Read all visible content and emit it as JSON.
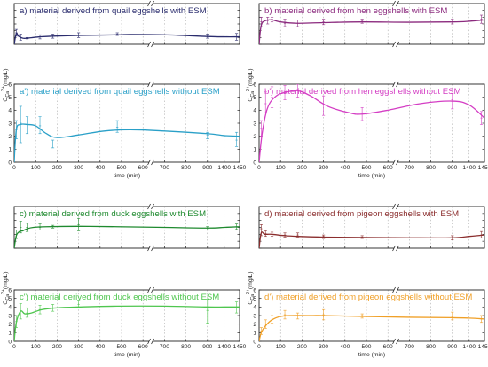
{
  "figure": {
    "x_ticks": [
      0,
      100,
      200,
      300,
      400,
      500,
      600,
      700,
      800,
      900,
      1400,
      1450
    ],
    "y_ticks": [
      0,
      1,
      2,
      3,
      4,
      5,
      6
    ],
    "x_axis_label": "time (min)",
    "y_axis_label": {
      "c": "C",
      "sub": "Ca",
      "sup": "2+",
      "unit": "(mg/L)"
    }
  },
  "chart_data": [
    {
      "type": "line",
      "panel": "a",
      "title": "a) material derived from quail eggshells with ESM",
      "color": "#2b2d6e",
      "xlim": [
        0,
        1450
      ],
      "ylim": [
        0,
        6
      ],
      "points": [
        {
          "x": 0,
          "y": 0
        },
        {
          "x": 10,
          "y": 1.6
        },
        {
          "x": 20,
          "y": 1.2
        },
        {
          "x": 40,
          "y": 0.9
        },
        {
          "x": 60,
          "y": 0.9
        },
        {
          "x": 90,
          "y": 1.0
        },
        {
          "x": 120,
          "y": 1.1
        },
        {
          "x": 180,
          "y": 1.2
        },
        {
          "x": 300,
          "y": 1.3
        },
        {
          "x": 480,
          "y": 1.4
        },
        {
          "x": 540,
          "y": 1.45
        },
        {
          "x": 700,
          "y": 1.4
        },
        {
          "x": 900,
          "y": 1.15
        },
        {
          "x": 1400,
          "y": 1.1
        },
        {
          "x": 1450,
          "y": 1.1
        }
      ],
      "error_bars": [
        {
          "x": 10,
          "y": 1.7,
          "lo": 1.2,
          "hi": 2.2
        },
        {
          "x": 30,
          "y": 1.0,
          "lo": 0.6,
          "hi": 1.5
        },
        {
          "x": 60,
          "y": 0.9,
          "lo": 0.8,
          "hi": 1.0
        },
        {
          "x": 120,
          "y": 1.1,
          "lo": 0.8,
          "hi": 1.4
        },
        {
          "x": 180,
          "y": 1.2,
          "lo": 0.9,
          "hi": 1.5
        },
        {
          "x": 300,
          "y": 1.35,
          "lo": 1.0,
          "hi": 1.7
        },
        {
          "x": 480,
          "y": 1.5,
          "lo": 1.3,
          "hi": 1.7
        },
        {
          "x": 900,
          "y": 1.2,
          "lo": 0.9,
          "hi": 1.5
        },
        {
          "x": 1440,
          "y": 1.1,
          "lo": 0.6,
          "hi": 1.6
        }
      ]
    },
    {
      "type": "line",
      "panel": "a'",
      "title": "a') material derived from quail eggshells without ESM",
      "color": "#2aa0c8",
      "xlim": [
        0,
        1450
      ],
      "ylim": [
        0,
        6
      ],
      "points": [
        {
          "x": 0,
          "y": 0
        },
        {
          "x": 10,
          "y": 2.5
        },
        {
          "x": 30,
          "y": 2.9
        },
        {
          "x": 60,
          "y": 2.9
        },
        {
          "x": 100,
          "y": 2.8
        },
        {
          "x": 150,
          "y": 2.2
        },
        {
          "x": 200,
          "y": 1.9
        },
        {
          "x": 300,
          "y": 2.1
        },
        {
          "x": 420,
          "y": 2.4
        },
        {
          "x": 540,
          "y": 2.5
        },
        {
          "x": 700,
          "y": 2.4
        },
        {
          "x": 900,
          "y": 2.2
        },
        {
          "x": 1400,
          "y": 2.05
        },
        {
          "x": 1450,
          "y": 2.0
        }
      ],
      "error_bars": [
        {
          "x": 10,
          "y": 2.5,
          "lo": 1.8,
          "hi": 3.2
        },
        {
          "x": 30,
          "y": 3.0,
          "lo": 1.5,
          "hi": 4.3
        },
        {
          "x": 60,
          "y": 2.9,
          "lo": 2.2,
          "hi": 3.5
        },
        {
          "x": 120,
          "y": 2.8,
          "lo": 2.2,
          "hi": 3.5
        },
        {
          "x": 180,
          "y": 1.4,
          "lo": 1.1,
          "hi": 1.7
        },
        {
          "x": 480,
          "y": 2.7,
          "lo": 2.3,
          "hi": 3.2
        },
        {
          "x": 900,
          "y": 2.1,
          "lo": 1.8,
          "hi": 2.3
        },
        {
          "x": 1440,
          "y": 1.7,
          "lo": 1.2,
          "hi": 2.3
        }
      ]
    },
    {
      "type": "line",
      "panel": "b",
      "title": "b) material derived from hen eggshells with ESM",
      "color": "#8b2a7e",
      "xlim": [
        0,
        1450
      ],
      "ylim": [
        0,
        6
      ],
      "points": [
        {
          "x": 0,
          "y": 0
        },
        {
          "x": 10,
          "y": 2.8
        },
        {
          "x": 30,
          "y": 3.5
        },
        {
          "x": 60,
          "y": 3.6
        },
        {
          "x": 100,
          "y": 3.3
        },
        {
          "x": 180,
          "y": 3.1
        },
        {
          "x": 300,
          "y": 3.2
        },
        {
          "x": 480,
          "y": 3.3
        },
        {
          "x": 700,
          "y": 3.25
        },
        {
          "x": 900,
          "y": 3.3
        },
        {
          "x": 1400,
          "y": 3.4
        },
        {
          "x": 1450,
          "y": 3.6
        }
      ],
      "error_bars": [
        {
          "x": 10,
          "y": 3.3,
          "lo": 2.6,
          "hi": 4.0
        },
        {
          "x": 40,
          "y": 3.5,
          "lo": 3.0,
          "hi": 4.0
        },
        {
          "x": 60,
          "y": 3.7,
          "lo": 3.3,
          "hi": 4.0
        },
        {
          "x": 120,
          "y": 3.1,
          "lo": 2.6,
          "hi": 3.7
        },
        {
          "x": 180,
          "y": 3.1,
          "lo": 2.6,
          "hi": 3.6
        },
        {
          "x": 300,
          "y": 3.3,
          "lo": 2.9,
          "hi": 3.7
        },
        {
          "x": 480,
          "y": 3.4,
          "lo": 3.1,
          "hi": 3.7
        },
        {
          "x": 900,
          "y": 3.3,
          "lo": 3.0,
          "hi": 3.7
        },
        {
          "x": 1440,
          "y": 3.7,
          "lo": 3.1,
          "hi": 4.3
        }
      ]
    },
    {
      "type": "line",
      "panel": "b'",
      "title": "b') material derived from hen eggshells without ESM",
      "color": "#d43ec4",
      "xlim": [
        0,
        1450
      ],
      "ylim": [
        0,
        6
      ],
      "points": [
        {
          "x": 0,
          "y": 0
        },
        {
          "x": 15,
          "y": 2.3
        },
        {
          "x": 40,
          "y": 4.2
        },
        {
          "x": 80,
          "y": 5.1
        },
        {
          "x": 130,
          "y": 5.4
        },
        {
          "x": 180,
          "y": 5.5
        },
        {
          "x": 240,
          "y": 5.1
        },
        {
          "x": 320,
          "y": 4.3
        },
        {
          "x": 420,
          "y": 3.8
        },
        {
          "x": 480,
          "y": 3.7
        },
        {
          "x": 600,
          "y": 4.0
        },
        {
          "x": 750,
          "y": 4.5
        },
        {
          "x": 900,
          "y": 4.7
        },
        {
          "x": 1400,
          "y": 4.4
        },
        {
          "x": 1450,
          "y": 3.4
        }
      ],
      "error_bars": [
        {
          "x": 10,
          "y": 2.6,
          "lo": 2.0,
          "hi": 3.2
        },
        {
          "x": 30,
          "y": 4.5,
          "lo": 3.8,
          "hi": 5.4
        },
        {
          "x": 60,
          "y": 5.0,
          "lo": 4.2,
          "hi": 5.8
        },
        {
          "x": 120,
          "y": 5.3,
          "lo": 4.8,
          "hi": 5.9
        },
        {
          "x": 180,
          "y": 5.6,
          "lo": 5.0,
          "hi": 6.0
        },
        {
          "x": 300,
          "y": 4.4,
          "lo": 3.6,
          "hi": 5.1
        },
        {
          "x": 480,
          "y": 3.7,
          "lo": 3.2,
          "hi": 4.2
        },
        {
          "x": 900,
          "y": 4.8,
          "lo": 4.1,
          "hi": 5.3
        },
        {
          "x": 1440,
          "y": 3.4,
          "lo": 2.9,
          "hi": 3.9
        }
      ]
    },
    {
      "type": "line",
      "panel": "c",
      "title": "c) material derived from duck eggshells with ESM",
      "color": "#1f8a2f",
      "xlim": [
        0,
        1450
      ],
      "ylim": [
        0,
        6
      ],
      "points": [
        {
          "x": 0,
          "y": 0
        },
        {
          "x": 10,
          "y": 1.8
        },
        {
          "x": 25,
          "y": 2.4
        },
        {
          "x": 40,
          "y": 2.5
        },
        {
          "x": 60,
          "y": 2.8
        },
        {
          "x": 90,
          "y": 3.0
        },
        {
          "x": 150,
          "y": 3.1
        },
        {
          "x": 300,
          "y": 3.15
        },
        {
          "x": 480,
          "y": 3.1
        },
        {
          "x": 700,
          "y": 3.0
        },
        {
          "x": 900,
          "y": 2.9
        },
        {
          "x": 1400,
          "y": 3.0
        },
        {
          "x": 1450,
          "y": 3.1
        }
      ],
      "error_bars": [
        {
          "x": 10,
          "y": 2.0,
          "lo": 1.4,
          "hi": 2.6
        },
        {
          "x": 30,
          "y": 3.0,
          "lo": 2.2,
          "hi": 3.9
        },
        {
          "x": 60,
          "y": 3.0,
          "lo": 2.4,
          "hi": 3.6
        },
        {
          "x": 120,
          "y": 3.0,
          "lo": 2.6,
          "hi": 3.5
        },
        {
          "x": 180,
          "y": 3.1,
          "lo": 2.9,
          "hi": 3.3
        },
        {
          "x": 300,
          "y": 3.4,
          "lo": 2.5,
          "hi": 4.3
        },
        {
          "x": 900,
          "y": 2.9,
          "lo": 2.6,
          "hi": 3.1
        },
        {
          "x": 1440,
          "y": 3.1,
          "lo": 2.7,
          "hi": 3.5
        }
      ]
    },
    {
      "type": "line",
      "panel": "c'",
      "title": "c') material derived from duck eggshells without ESM",
      "color": "#4fc64f",
      "xlim": [
        0,
        1450
      ],
      "ylim": [
        0,
        6
      ],
      "points": [
        {
          "x": 0,
          "y": 0
        },
        {
          "x": 10,
          "y": 2.2
        },
        {
          "x": 30,
          "y": 3.5
        },
        {
          "x": 50,
          "y": 3.2
        },
        {
          "x": 80,
          "y": 3.3
        },
        {
          "x": 130,
          "y": 3.7
        },
        {
          "x": 200,
          "y": 3.9
        },
        {
          "x": 300,
          "y": 4.0
        },
        {
          "x": 480,
          "y": 4.1
        },
        {
          "x": 700,
          "y": 4.1
        },
        {
          "x": 900,
          "y": 4.0
        },
        {
          "x": 1400,
          "y": 4.0
        },
        {
          "x": 1450,
          "y": 4.0
        }
      ],
      "error_bars": [
        {
          "x": 10,
          "y": 2.3,
          "lo": 1.6,
          "hi": 3.0
        },
        {
          "x": 30,
          "y": 3.5,
          "lo": 2.6,
          "hi": 4.4
        },
        {
          "x": 60,
          "y": 3.3,
          "lo": 2.8,
          "hi": 3.9
        },
        {
          "x": 120,
          "y": 3.7,
          "lo": 3.2,
          "hi": 4.2
        },
        {
          "x": 180,
          "y": 3.9,
          "lo": 3.5,
          "hi": 4.3
        },
        {
          "x": 300,
          "y": 4.3,
          "lo": 3.9,
          "hi": 4.8
        },
        {
          "x": 900,
          "y": 3.6,
          "lo": 2.1,
          "hi": 4.9
        },
        {
          "x": 1440,
          "y": 4.0,
          "lo": 3.3,
          "hi": 4.6
        }
      ]
    },
    {
      "type": "line",
      "panel": "d",
      "title": "d) material derived from pigeon eggshells with ESM",
      "color": "#8b2e2e",
      "xlim": [
        0,
        1450
      ],
      "ylim": [
        0,
        6
      ],
      "points": [
        {
          "x": 0,
          "y": 0
        },
        {
          "x": 10,
          "y": 2.2
        },
        {
          "x": 25,
          "y": 2.0
        },
        {
          "x": 40,
          "y": 2.0
        },
        {
          "x": 60,
          "y": 2.0
        },
        {
          "x": 120,
          "y": 1.8
        },
        {
          "x": 180,
          "y": 1.7
        },
        {
          "x": 300,
          "y": 1.6
        },
        {
          "x": 480,
          "y": 1.55
        },
        {
          "x": 700,
          "y": 1.5
        },
        {
          "x": 900,
          "y": 1.5
        },
        {
          "x": 1400,
          "y": 1.7
        },
        {
          "x": 1450,
          "y": 1.9
        }
      ],
      "error_bars": [
        {
          "x": 10,
          "y": 2.8,
          "lo": 1.8,
          "hi": 3.4
        },
        {
          "x": 30,
          "y": 2.1,
          "lo": 1.7,
          "hi": 2.5
        },
        {
          "x": 60,
          "y": 2.0,
          "lo": 1.7,
          "hi": 2.3
        },
        {
          "x": 120,
          "y": 1.9,
          "lo": 1.6,
          "hi": 2.2
        },
        {
          "x": 180,
          "y": 1.9,
          "lo": 1.6,
          "hi": 2.2
        },
        {
          "x": 300,
          "y": 1.7,
          "lo": 1.4,
          "hi": 1.9
        },
        {
          "x": 480,
          "y": 1.6,
          "lo": 1.4,
          "hi": 1.8
        },
        {
          "x": 900,
          "y": 1.5,
          "lo": 1.2,
          "hi": 1.8
        },
        {
          "x": 1440,
          "y": 1.9,
          "lo": 1.5,
          "hi": 2.4
        }
      ]
    },
    {
      "type": "line",
      "panel": "d'",
      "title": "d') material derived from pigeon eggshells without ESM",
      "color": "#f0a028",
      "xlim": [
        0,
        1450
      ],
      "ylim": [
        0,
        6
      ],
      "points": [
        {
          "x": 0,
          "y": 0
        },
        {
          "x": 10,
          "y": 1.0
        },
        {
          "x": 30,
          "y": 1.8
        },
        {
          "x": 60,
          "y": 2.5
        },
        {
          "x": 100,
          "y": 2.9
        },
        {
          "x": 150,
          "y": 3.0
        },
        {
          "x": 250,
          "y": 3.0
        },
        {
          "x": 300,
          "y": 3.0
        },
        {
          "x": 480,
          "y": 2.9
        },
        {
          "x": 700,
          "y": 2.8
        },
        {
          "x": 900,
          "y": 2.75
        },
        {
          "x": 1400,
          "y": 2.7
        },
        {
          "x": 1450,
          "y": 2.6
        }
      ],
      "error_bars": [
        {
          "x": 10,
          "y": 1.2,
          "lo": 0.8,
          "hi": 1.6
        },
        {
          "x": 30,
          "y": 2.0,
          "lo": 1.5,
          "hi": 2.5
        },
        {
          "x": 60,
          "y": 2.5,
          "lo": 2.1,
          "hi": 3.0
        },
        {
          "x": 120,
          "y": 3.1,
          "lo": 2.6,
          "hi": 3.6
        },
        {
          "x": 180,
          "y": 3.0,
          "lo": 2.6,
          "hi": 3.3
        },
        {
          "x": 300,
          "y": 3.1,
          "lo": 2.5,
          "hi": 3.7
        },
        {
          "x": 480,
          "y": 3.0,
          "lo": 2.7,
          "hi": 3.2
        },
        {
          "x": 900,
          "y": 2.9,
          "lo": 2.5,
          "hi": 3.4
        },
        {
          "x": 1440,
          "y": 2.6,
          "lo": 2.2,
          "hi": 3.0
        }
      ]
    }
  ]
}
